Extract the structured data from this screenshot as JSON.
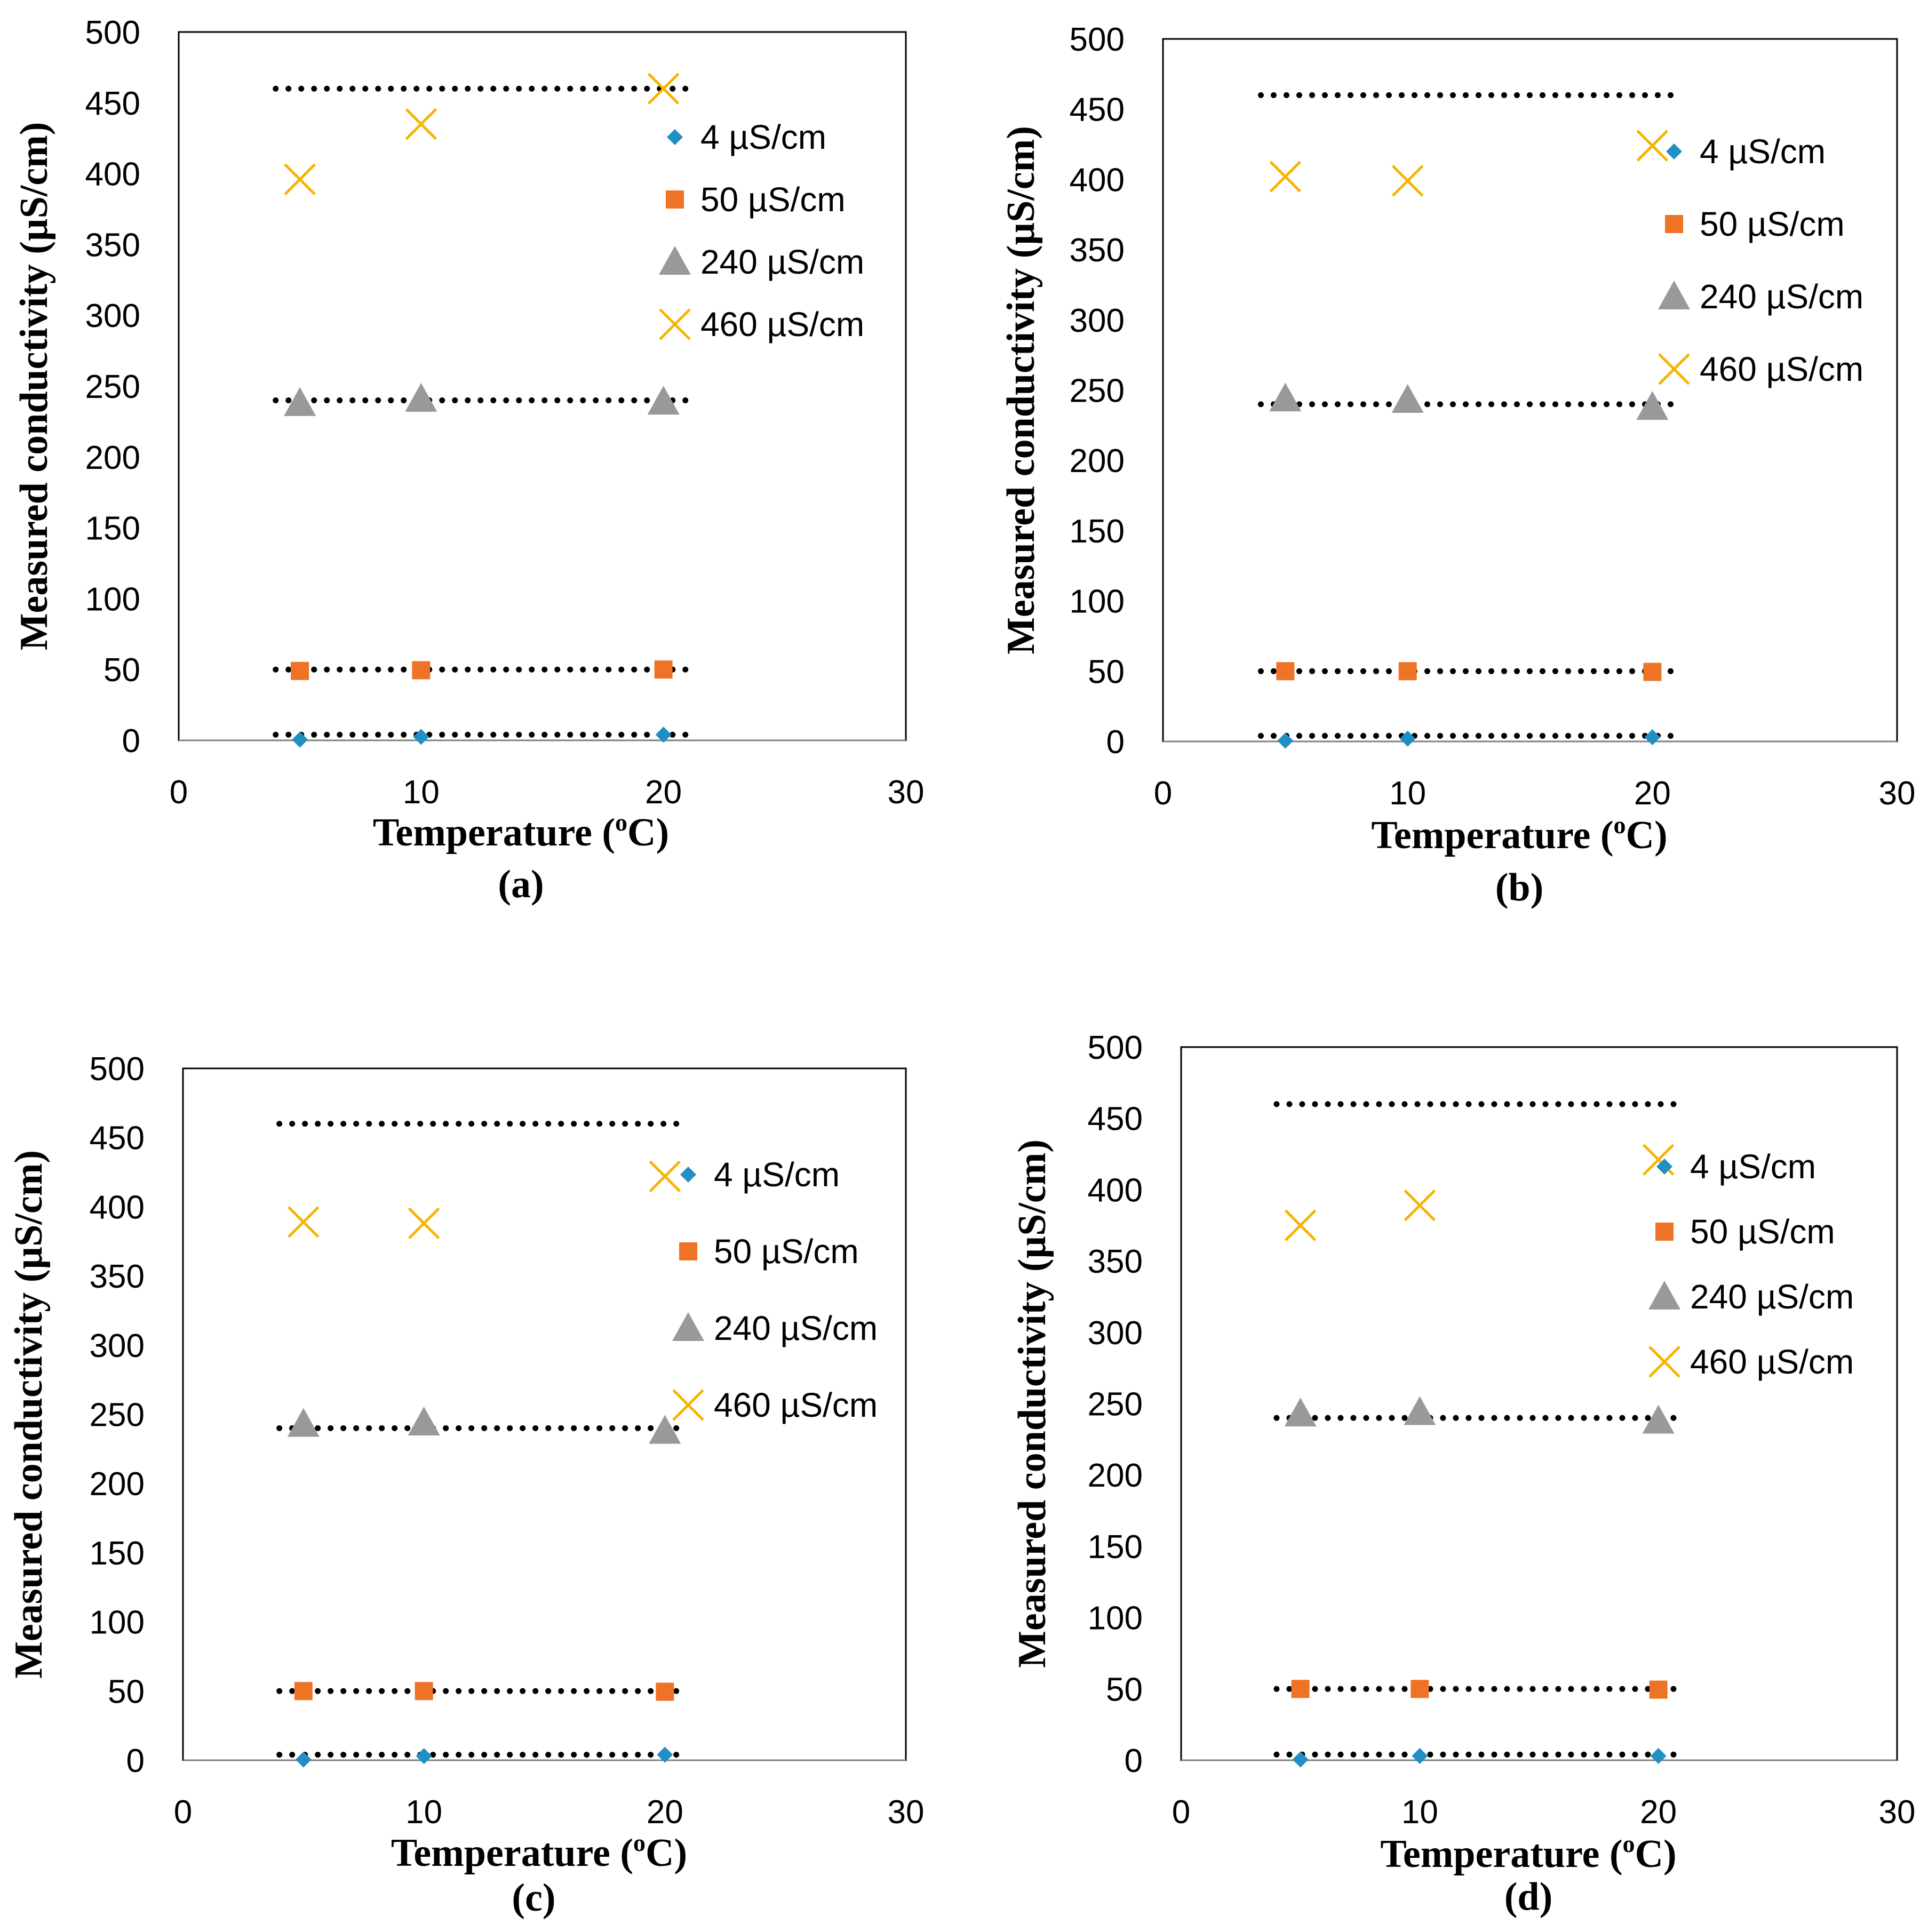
{
  "colors": {
    "4": "#1f8fc4",
    "50": "#ee7326",
    "240": "#999999",
    "460": "#f5b400",
    "reference_line": "#000000"
  },
  "chart_data": [
    {
      "type": "scatter",
      "panel_label": "(a)",
      "xlabel": "Temperature (",
      "xlabel_sup": "o",
      "xlabel_tail": "C)",
      "ylabel": "Measured conductivity (µS/cm)",
      "xlim": [
        0,
        30
      ],
      "ylim": [
        0,
        500
      ],
      "xticks": [
        "0",
        "10",
        "20",
        "30"
      ],
      "yticks": [
        "0",
        "50",
        "100",
        "150",
        "200",
        "250",
        "300",
        "350",
        "400",
        "450",
        "500"
      ],
      "grid": false,
      "legend": "right",
      "reference_lines": [
        {
          "y": 4,
          "x": [
            4,
            21
          ]
        },
        {
          "y": 50,
          "x": [
            4,
            21
          ]
        },
        {
          "y": 240,
          "x": [
            4,
            21
          ]
        },
        {
          "y": 460,
          "x": [
            4,
            21
          ]
        }
      ],
      "series": [
        {
          "name": "4 µS/cm",
          "marker": "diamond",
          "color": "#1f8fc4",
          "x": [
            5,
            10,
            20
          ],
          "y": [
            0.5,
            2.5,
            4
          ]
        },
        {
          "name": "50 µS/cm",
          "marker": "square",
          "color": "#ee7326",
          "x": [
            5,
            10,
            20
          ],
          "y": [
            49,
            49.5,
            50
          ]
        },
        {
          "name": "240 µS/cm",
          "marker": "triangle",
          "color": "#999999",
          "x": [
            5,
            10,
            20
          ],
          "y": [
            238,
            241,
            239
          ]
        },
        {
          "name": "460 µS/cm",
          "marker": "x",
          "color": "#f5b400",
          "x": [
            5,
            10,
            20
          ],
          "y": [
            396,
            435,
            460
          ]
        }
      ]
    },
    {
      "type": "scatter",
      "panel_label": "(b)",
      "xlabel": "Temperature (",
      "xlabel_sup": "o",
      "xlabel_tail": "C)",
      "ylabel": "Measured conductivity (µS/cm)",
      "xlim": [
        0,
        30
      ],
      "ylim": [
        0,
        500
      ],
      "xticks": [
        "0",
        "10",
        "20",
        "30"
      ],
      "yticks": [
        "0",
        "50",
        "100",
        "150",
        "200",
        "250",
        "300",
        "350",
        "400",
        "450",
        "500"
      ],
      "grid": false,
      "legend": "right",
      "reference_lines": [
        {
          "y": 4,
          "x": [
            4,
            21
          ]
        },
        {
          "y": 50,
          "x": [
            4,
            21
          ]
        },
        {
          "y": 240,
          "x": [
            4,
            21
          ]
        },
        {
          "y": 460,
          "x": [
            4,
            21
          ]
        }
      ],
      "series": [
        {
          "name": "4 µS/cm",
          "marker": "diamond",
          "color": "#1f8fc4",
          "x": [
            5,
            10,
            20
          ],
          "y": [
            0.5,
            2,
            3
          ]
        },
        {
          "name": "50 µS/cm",
          "marker": "square",
          "color": "#ee7326",
          "x": [
            5,
            10,
            20
          ],
          "y": [
            50,
            50,
            49.5
          ]
        },
        {
          "name": "240 µS/cm",
          "marker": "triangle",
          "color": "#999999",
          "x": [
            5,
            10,
            20
          ],
          "y": [
            244,
            243,
            238
          ]
        },
        {
          "name": "460 µS/cm",
          "marker": "x",
          "color": "#f5b400",
          "x": [
            5,
            10,
            20
          ],
          "y": [
            402,
            399,
            424
          ]
        }
      ]
    },
    {
      "type": "scatter",
      "panel_label": "(c)",
      "xlabel": "Temperature (",
      "xlabel_sup": "o",
      "xlabel_tail": "C)",
      "ylabel": "Measured conductivity (µS/cm)",
      "xlim": [
        0,
        30
      ],
      "ylim": [
        0,
        500
      ],
      "xticks": [
        "0",
        "10",
        "20",
        "30"
      ],
      "yticks": [
        "0",
        "50",
        "100",
        "150",
        "200",
        "250",
        "300",
        "350",
        "400",
        "450",
        "500"
      ],
      "grid": false,
      "legend": "right",
      "reference_lines": [
        {
          "y": 4,
          "x": [
            4,
            21
          ]
        },
        {
          "y": 50,
          "x": [
            4,
            21
          ]
        },
        {
          "y": 240,
          "x": [
            4,
            21
          ]
        },
        {
          "y": 460,
          "x": [
            4,
            21
          ]
        }
      ],
      "series": [
        {
          "name": "4 µS/cm",
          "marker": "diamond",
          "color": "#1f8fc4",
          "x": [
            5,
            10,
            20
          ],
          "y": [
            0.5,
            3,
            4
          ]
        },
        {
          "name": "50 µS/cm",
          "marker": "square",
          "color": "#ee7326",
          "x": [
            5,
            10,
            20
          ],
          "y": [
            50,
            50,
            49.5
          ]
        },
        {
          "name": "240 µS/cm",
          "marker": "triangle",
          "color": "#999999",
          "x": [
            5,
            10,
            20
          ],
          "y": [
            243,
            244,
            238
          ]
        },
        {
          "name": "460 µS/cm",
          "marker": "x",
          "color": "#f5b400",
          "x": [
            5,
            10,
            20
          ],
          "y": [
            389,
            388,
            422
          ]
        }
      ]
    },
    {
      "type": "scatter",
      "panel_label": "(d)",
      "xlabel": "Temperature (",
      "xlabel_sup": "o",
      "xlabel_tail": "C)",
      "ylabel": "Measured conductivity (µS/cm)",
      "xlim": [
        0,
        30
      ],
      "ylim": [
        0,
        500
      ],
      "xticks": [
        "0",
        "10",
        "20",
        "30"
      ],
      "yticks": [
        "0",
        "50",
        "100",
        "150",
        "200",
        "250",
        "300",
        "350",
        "400",
        "450",
        "500"
      ],
      "grid": false,
      "legend": "right",
      "reference_lines": [
        {
          "y": 4,
          "x": [
            4,
            21
          ]
        },
        {
          "y": 50,
          "x": [
            4,
            21
          ]
        },
        {
          "y": 240,
          "x": [
            4,
            21
          ]
        },
        {
          "y": 460,
          "x": [
            4,
            21
          ]
        }
      ],
      "series": [
        {
          "name": "4 µS/cm",
          "marker": "diamond",
          "color": "#1f8fc4",
          "x": [
            5,
            10,
            20
          ],
          "y": [
            0.5,
            3,
            3
          ]
        },
        {
          "name": "50 µS/cm",
          "marker": "square",
          "color": "#ee7326",
          "x": [
            5,
            10,
            20
          ],
          "y": [
            50,
            50,
            49.5
          ]
        },
        {
          "name": "240 µS/cm",
          "marker": "triangle",
          "color": "#999999",
          "x": [
            5,
            10,
            20
          ],
          "y": [
            243,
            244,
            238
          ]
        },
        {
          "name": "460 µS/cm",
          "marker": "x",
          "color": "#f5b400",
          "x": [
            5,
            10,
            20
          ],
          "y": [
            375,
            389,
            421
          ]
        }
      ]
    }
  ]
}
